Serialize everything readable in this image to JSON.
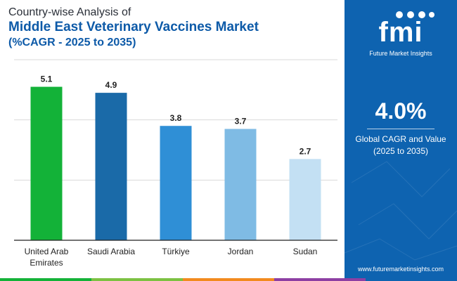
{
  "title": {
    "line1": "Country-wise Analysis of",
    "line2": "Middle East Veterinary Vaccines Market",
    "line3": "(%CAGR - 2025 to 2035)"
  },
  "chart_data": {
    "type": "bar",
    "categories": [
      "United Arab Emirates",
      "Saudi Arabia",
      "Türkiye",
      "Jordan",
      "Sudan"
    ],
    "category_lines": [
      [
        "United Arab",
        "Emirates"
      ],
      [
        "Saudi Arabia"
      ],
      [
        "Türkiye"
      ],
      [
        "Jordan"
      ],
      [
        "Sudan"
      ]
    ],
    "values": [
      5.1,
      4.9,
      3.8,
      3.7,
      2.7
    ],
    "value_labels": [
      "5.1",
      "4.9",
      "3.8",
      "3.7",
      "2.7"
    ],
    "colors": [
      "#13b238",
      "#1a6aa8",
      "#2f8fd6",
      "#7fbbe4",
      "#c3e0f3"
    ],
    "ylim": [
      0,
      6
    ],
    "grid": true,
    "xlabel": "",
    "ylabel": ""
  },
  "side_panel": {
    "logo_text": "fmi",
    "logo_subtitle": "Future Market Insights",
    "cagr_value": "4.0%",
    "cagr_label_line1": "Global CAGR and Value",
    "cagr_label_line2": "(2025 to 2035)",
    "website": "www.futuremarketinsights.com",
    "background_color": "#0e63b0"
  },
  "bottom_strip_colors": [
    "#13b238",
    "#7cc142",
    "#f28a1e",
    "#8d3fa3",
    "#0e63b0"
  ]
}
